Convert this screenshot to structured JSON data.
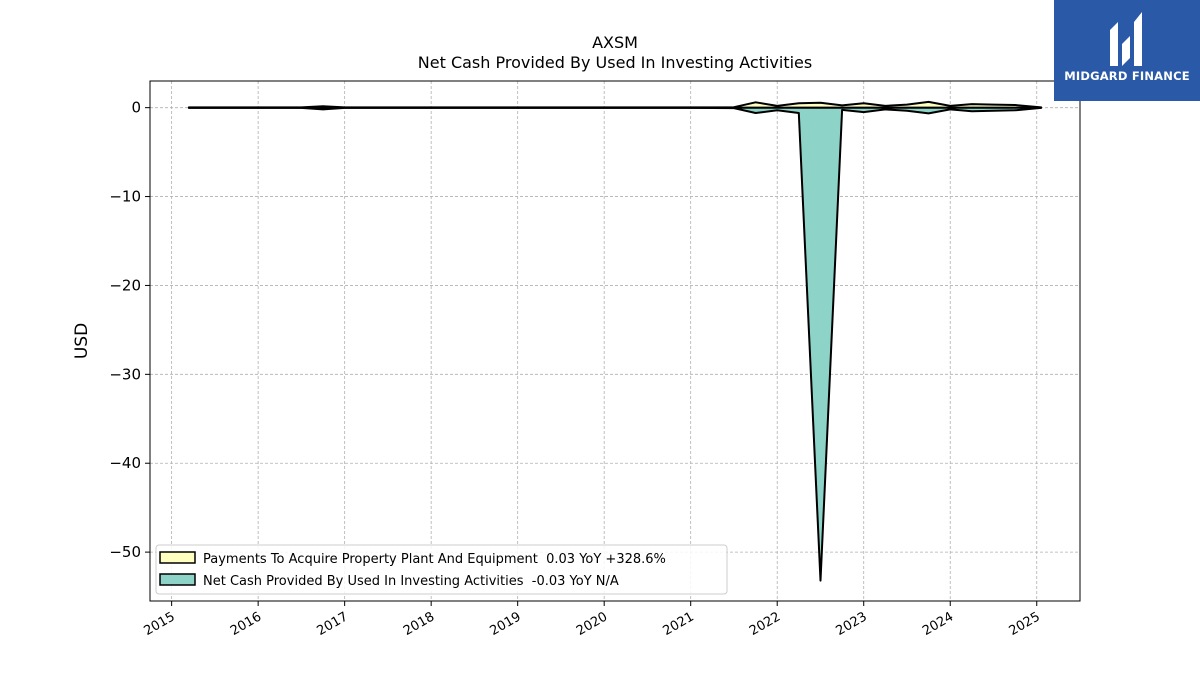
{
  "brand": {
    "name": "MIDGARD FINANCE",
    "bg_color": "#2a59a8"
  },
  "chart_data": {
    "type": "area",
    "title": "AXSM",
    "subtitle": "Net Cash Provided By Used In Investing Activities",
    "xlabel": "",
    "ylabel": "USD",
    "xlim": [
      2014.75,
      2025.5
    ],
    "ylim": [
      -55.5,
      3.0
    ],
    "x_ticks": [
      2015,
      2016,
      2017,
      2018,
      2019,
      2020,
      2021,
      2022,
      2023,
      2024,
      2025
    ],
    "x_tick_labels": [
      "2015",
      "2016",
      "2017",
      "2018",
      "2019",
      "2020",
      "2021",
      "2022",
      "2023",
      "2024",
      "2025"
    ],
    "y_ticks": [
      0,
      -10,
      -20,
      -30,
      -40,
      -50
    ],
    "y_tick_labels": [
      "0",
      "−10",
      "−20",
      "−30",
      "−40",
      "−50"
    ],
    "grid": true,
    "legend_position": "lower-left",
    "series": [
      {
        "name": "Payments To Acquire Property Plant And Equipment",
        "legend_label": "Payments To Acquire Property Plant And Equipment  0.03 YoY +328.6%",
        "color": "#ffffc0",
        "x": [
          2015.2,
          2015.5,
          2016.0,
          2016.5,
          2016.75,
          2017.0,
          2018.0,
          2019.0,
          2020.0,
          2021.0,
          2021.5,
          2021.75,
          2022.0,
          2022.25,
          2022.5,
          2022.75,
          2023.0,
          2023.25,
          2023.5,
          2023.75,
          2024.0,
          2024.25,
          2024.5,
          2024.75,
          2025.05
        ],
        "y": [
          0.03,
          0.03,
          0.03,
          0.03,
          0.15,
          0.03,
          0.03,
          0.03,
          0.03,
          0.03,
          0.05,
          0.6,
          0.2,
          0.5,
          0.55,
          0.25,
          0.5,
          0.2,
          0.35,
          0.65,
          0.2,
          0.4,
          0.35,
          0.3,
          0.03
        ]
      },
      {
        "name": "Net Cash Provided By Used In Investing Activities",
        "legend_label": "Net Cash Provided By Used In Investing Activities  -0.03 YoY N/A",
        "color": "#8dd3c7",
        "x": [
          2015.2,
          2015.5,
          2016.0,
          2016.5,
          2016.75,
          2017.0,
          2018.0,
          2019.0,
          2020.0,
          2021.0,
          2021.5,
          2021.75,
          2022.0,
          2022.25,
          2022.5,
          2022.75,
          2023.0,
          2023.25,
          2023.5,
          2023.75,
          2024.0,
          2024.25,
          2024.5,
          2024.75,
          2025.05
        ],
        "y": [
          -0.03,
          -0.03,
          -0.03,
          -0.03,
          -0.2,
          -0.03,
          -0.03,
          -0.03,
          -0.03,
          -0.03,
          -0.05,
          -0.6,
          -0.3,
          -0.6,
          -53.2,
          -0.25,
          -0.5,
          -0.2,
          -0.35,
          -0.65,
          -0.2,
          -0.4,
          -0.35,
          -0.3,
          -0.03
        ]
      }
    ]
  }
}
